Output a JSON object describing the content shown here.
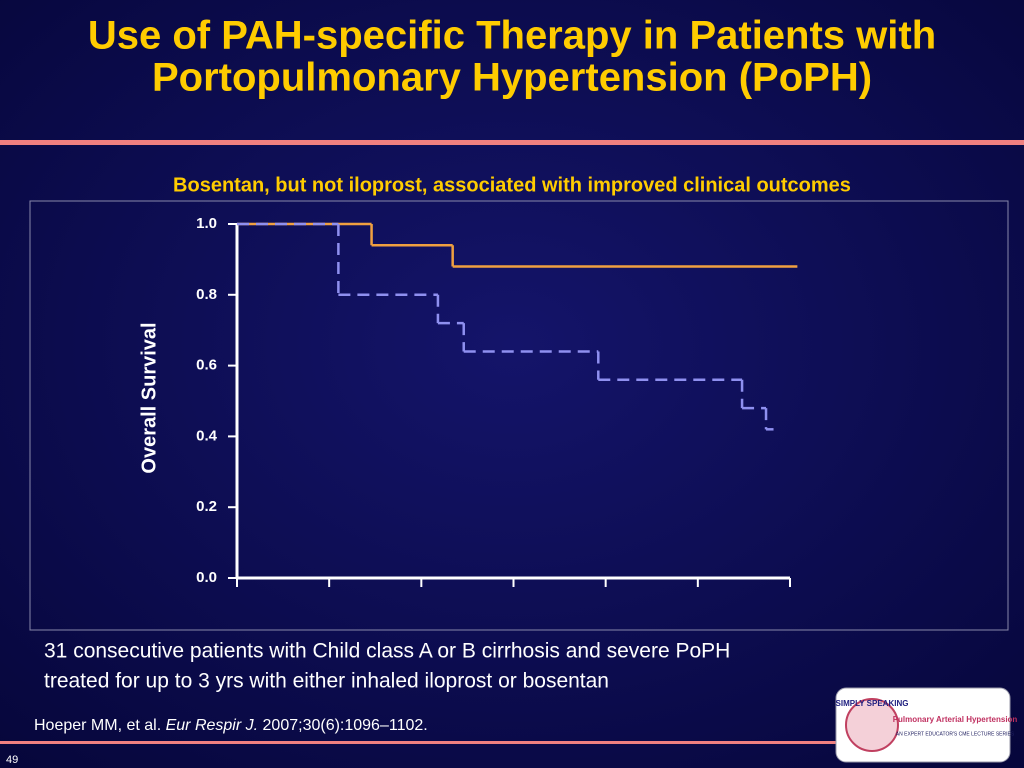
{
  "title": [
    "Use of PAH-specific Therapy in Patients with",
    "Portopulmonary Hypertension (PoPH)"
  ],
  "subtitle": "Bosentan, but not iloprost, associated with improved clinical outcomes",
  "body": [
    "31 consecutive patients with Child class A or B cirrhosis and severe PoPH",
    "treated for up to 3 yrs with either inhaled iloprost or bosentan"
  ],
  "citation": [
    "Hoeper MM, et al. ",
    "Eur Respir J.",
    " 2007;30(6):1096–1102."
  ],
  "logo": {
    "brand": "SIMPLY SPEAKING",
    "topic": "Pulmonary Arterial Hypertension",
    "tagline": "AN EXPERT EDUCATOR'S CME LECTURE SERIES"
  },
  "page_number": "49",
  "chart_data": {
    "type": "step",
    "ylabel": "Overall Survival",
    "xlim": [
      0,
      3
    ],
    "xticks": [
      0,
      0.5,
      1,
      1.5,
      2,
      2.5,
      3
    ],
    "ylim": [
      0,
      1
    ],
    "yticks": [
      {
        "value": 0,
        "label": "0.0"
      },
      0.2,
      0.4,
      0.6,
      0.8,
      {
        "value": 1,
        "label": "1.0"
      }
    ],
    "series": [
      {
        "color": "#f0a040",
        "dashed": false,
        "x": [
          0,
          0.73,
          1.17,
          3.04
        ],
        "values": [
          1,
          0.94,
          0.88,
          0.88
        ]
      },
      {
        "color": "#8f90f0",
        "dashed": true,
        "x": [
          0,
          0.55,
          1.09,
          1.23,
          1.96,
          2.74,
          2.87,
          2.91
        ],
        "values": [
          1,
          0.8,
          0.72,
          0.64,
          0.56,
          0.48,
          0.42,
          0.42
        ]
      }
    ]
  }
}
